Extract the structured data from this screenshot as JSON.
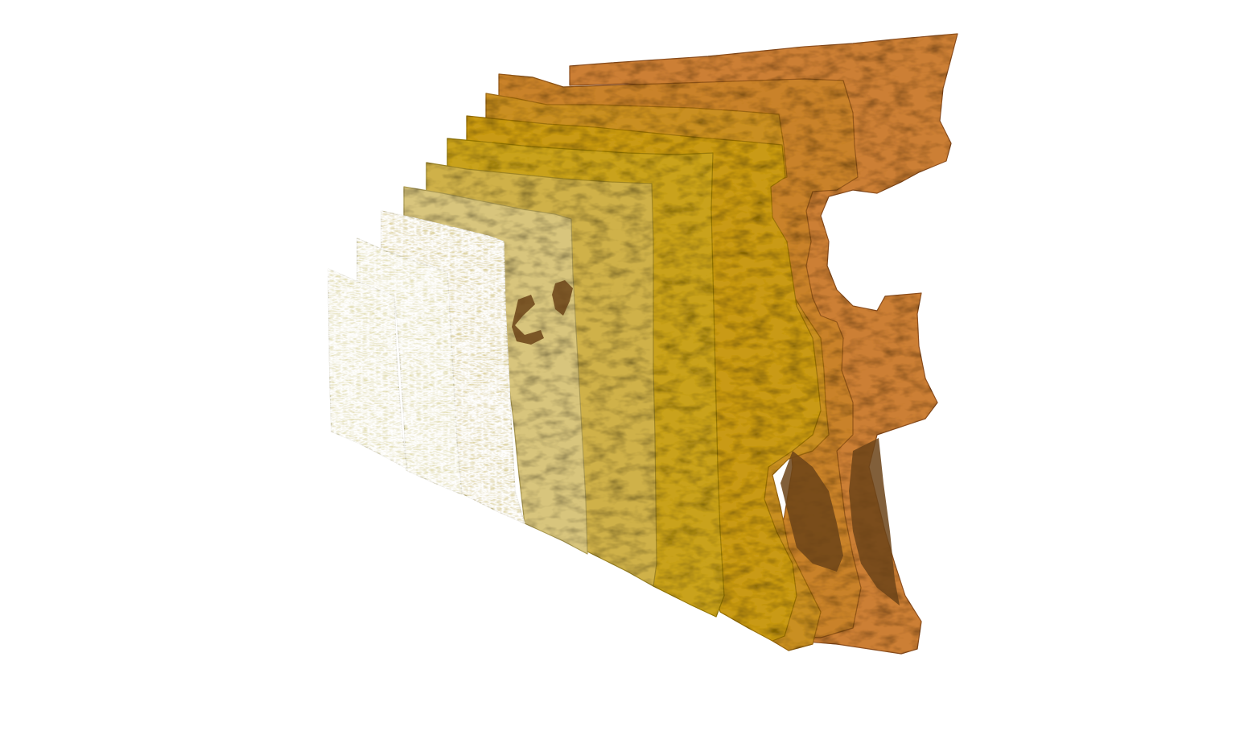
{
  "scene": {
    "background": "#ffffff",
    "description_kind": "3d-isosurface-render",
    "layer_count": 9,
    "layers": [
      {
        "name": "layer-1",
        "color": "#e3deb4",
        "shade": "#b9b38a"
      },
      {
        "name": "layer-2",
        "color": "#ded3a0",
        "shade": "#b3a874"
      },
      {
        "name": "layer-3",
        "color": "#d8c57d",
        "shade": "#ab9a52"
      },
      {
        "name": "layer-4",
        "color": "#cfb14a",
        "shade": "#9e8526"
      },
      {
        "name": "layer-5",
        "color": "#c9a21d",
        "shade": "#997a08"
      },
      {
        "name": "layer-6",
        "color": "#c99a18",
        "shade": "#9a7109"
      },
      {
        "name": "layer-7",
        "color": "#c98f20",
        "shade": "#9b6612"
      },
      {
        "name": "layer-8",
        "color": "#c9822a",
        "shade": "#93571a"
      },
      {
        "name": "layer-9",
        "color": "#cc7f34",
        "shade": "#8e5020"
      }
    ],
    "hole_color": "#6b4317"
  }
}
